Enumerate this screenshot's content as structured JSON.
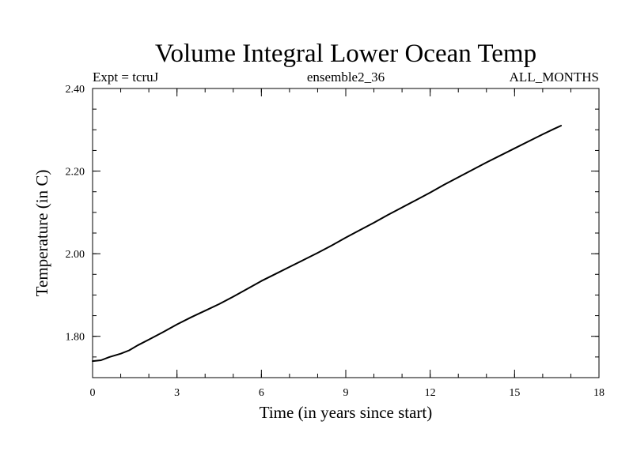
{
  "chart_data": {
    "type": "line",
    "title": "Volume Integral Lower Ocean Temp",
    "subtitle_left": "Expt = tcruJ",
    "subtitle_center": "ensemble2_36",
    "subtitle_right": "ALL_MONTHS",
    "xlabel": "Time (in years since start)",
    "ylabel": "Temperature (in C)",
    "xlim": [
      0,
      18
    ],
    "ylim": [
      1.7,
      2.4
    ],
    "x_ticks": [
      0,
      3,
      6,
      9,
      12,
      15,
      18
    ],
    "x_tick_labels": [
      "0",
      "3",
      "6",
      "9",
      "12",
      "15",
      "18"
    ],
    "y_ticks": [
      1.8,
      2.0,
      2.2,
      2.4
    ],
    "y_tick_labels": [
      "1.80",
      "2.00",
      "2.20",
      "2.40"
    ],
    "x_minor_step": 1,
    "y_minor_step": 0.05,
    "grid": false,
    "series": [
      {
        "name": "Lower Ocean Temp",
        "color": "#000000",
        "x": [
          0,
          0.3,
          0.6,
          1.0,
          1.3,
          1.6,
          2.0,
          2.5,
          3.0,
          3.5,
          4.0,
          4.5,
          5.0,
          5.5,
          6.0,
          6.5,
          7.0,
          7.5,
          8.0,
          8.5,
          9.0,
          9.5,
          10.0,
          10.5,
          11.0,
          11.5,
          12.0,
          12.5,
          13.0,
          13.5,
          14.0,
          14.5,
          15.0,
          15.5,
          16.0,
          16.4,
          16.65
        ],
        "values": [
          1.74,
          1.742,
          1.75,
          1.758,
          1.766,
          1.778,
          1.792,
          1.81,
          1.829,
          1.846,
          1.862,
          1.878,
          1.896,
          1.915,
          1.934,
          1.951,
          1.968,
          1.985,
          2.002,
          2.02,
          2.039,
          2.057,
          2.075,
          2.094,
          2.112,
          2.13,
          2.148,
          2.167,
          2.185,
          2.203,
          2.221,
          2.238,
          2.255,
          2.272,
          2.289,
          2.302,
          2.31
        ]
      }
    ]
  }
}
